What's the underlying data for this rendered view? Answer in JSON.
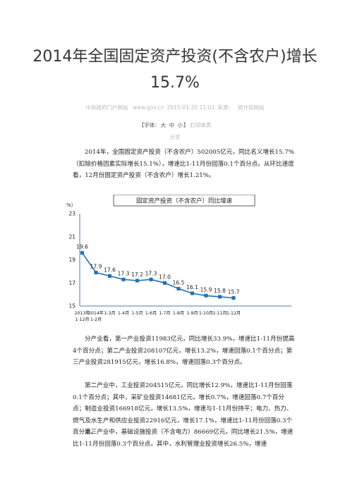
{
  "article": {
    "title": "2014年全国固定资产投资(不含农户)增长15.7%",
    "meta": {
      "source_site": "中央政府门户网站",
      "url": "www.gov.cn",
      "datetime": "2015-01-20 11:03",
      "source_label": "来源：",
      "source": "统计局网站"
    },
    "font_controls": {
      "prefix": "【字体：",
      "large": "大",
      "medium": "中",
      "small": "小",
      "suffix": "】",
      "print": "打印本页"
    },
    "share": "分享",
    "paragraphs": [
      "2014年，全国固定资产投资（不含农户）502005亿元，同比名义增长15.7%（扣除价格因素实际增长15.1%），增速比1-11月份回落0.1个百分点。从环比速度看，12月份固定资产投资（不含农户）增长1.21%。",
      "分产业看，第一产业投资11983亿元，同比增长33.9%，增速比1-11月份提高4个百分点；第二产业投资208107亿元，增长13.2%，增速回落0.1个百分点；第三产业投资281915亿元，增长16.8%，增速回落0.3个百分点。",
      "第二产业中，工业投资204515亿元，同比增长12.9%，增速比1-11月份回落0.1个百分点；其中，采矿业投资14681亿元，增长0.7%，增速回落0.7个百分点；制造业投资166918亿元，增长13.5%，增速与1-11月份持平；电力、热力、燃气及水生产和供应业投资22916亿元，增长17.1%，增速比1-11月份回落0.3个百分点。",
      "第三产业中，基础设施投资（不含电力）86669亿元，同比增长21.5%，增速比1-11月份回落0.3个百分点。其中，水利管理业投资增长26.5%，增速"
    ]
  },
  "chart_data": {
    "type": "line",
    "title": "固定资产投资（不含农户）同比增速",
    "ylabel": "（%）",
    "ylim": [
      15,
      23
    ],
    "yticks": [
      "15",
      "17",
      "19",
      "21",
      "23"
    ],
    "grid": false,
    "categories": [
      [
        "2013年",
        "1-12月"
      ],
      [
        "2014年",
        "1-2月"
      ],
      [
        "1-3月"
      ],
      [
        "1-4月"
      ],
      [
        "1-5月"
      ],
      [
        "1-6月"
      ],
      [
        "1-7月"
      ],
      [
        "1-8月"
      ],
      [
        "1-9月"
      ],
      [
        "1-10月"
      ],
      [
        "1-11月"
      ],
      [
        "1-12月"
      ]
    ],
    "values": [
      19.6,
      17.9,
      17.6,
      17.3,
      17.2,
      17.3,
      17.0,
      16.5,
      16.1,
      15.9,
      15.8,
      15.7
    ],
    "value_labels": [
      "19.6",
      "17.9",
      "17.6",
      "17.3",
      "17.2",
      "17.3",
      "17.0",
      "16.5",
      "16.1",
      "15.9",
      "15.8",
      "15.7"
    ],
    "colors": {
      "line": "#1f6fb5",
      "marker": "#1f6fb5",
      "frame": "#4f79bd",
      "title_border": "#333333"
    }
  }
}
